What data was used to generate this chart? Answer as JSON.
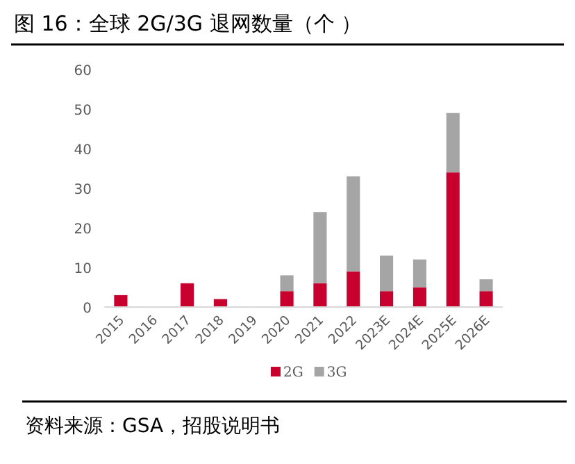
{
  "chart_data": {
    "type": "bar",
    "stacked": true,
    "title": "图 16：全球 2G/3G 退网数量（个 ）",
    "categories": [
      "2015",
      "2016",
      "2017",
      "2018",
      "2019",
      "2020",
      "2021",
      "2022",
      "2023E",
      "2024E",
      "2025E",
      "2026E"
    ],
    "series": [
      {
        "name": "2G",
        "color": "#c8002d",
        "values": [
          3,
          0,
          6,
          2,
          0,
          4,
          6,
          9,
          4,
          5,
          34,
          4
        ]
      },
      {
        "name": "3G",
        "color": "#a5a5a5",
        "values": [
          0,
          0,
          0,
          0,
          0,
          4,
          18,
          24,
          9,
          7,
          15,
          3
        ]
      }
    ],
    "ylim": [
      0,
      60
    ],
    "yticks": [
      0,
      10,
      20,
      30,
      40,
      50,
      60
    ],
    "grid": false,
    "legend": "bottom",
    "annotations": [
      "资料来源：GSA，招股说明书"
    ]
  }
}
